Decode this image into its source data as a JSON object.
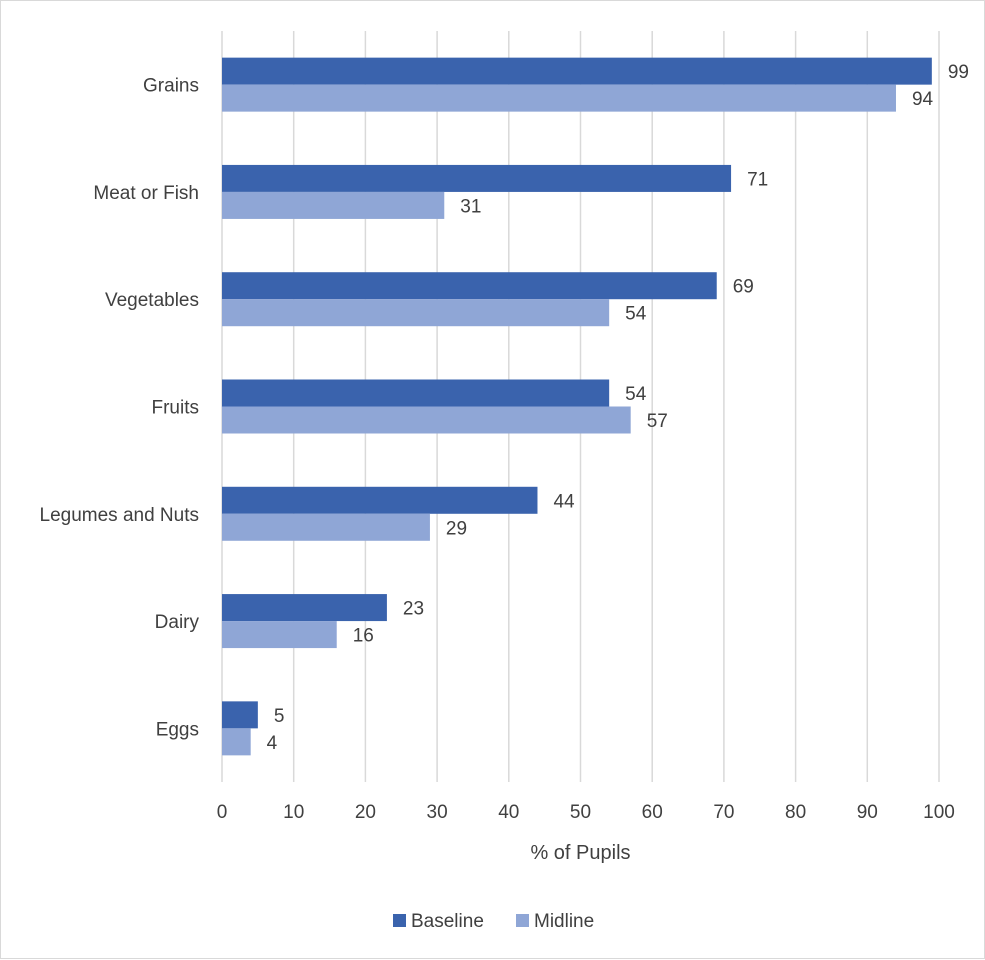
{
  "chart_data": {
    "type": "bar",
    "orientation": "horizontal",
    "categories": [
      "Grains",
      "Meat or Fish",
      "Vegetables",
      "Fruits",
      "Legumes and Nuts",
      "Dairy",
      "Eggs"
    ],
    "series": [
      {
        "name": "Baseline",
        "values": [
          99,
          71,
          69,
          54,
          44,
          23,
          5
        ],
        "color": "#3a63ad"
      },
      {
        "name": "Midline",
        "values": [
          94,
          31,
          54,
          57,
          29,
          16,
          4
        ],
        "color": "#8fa6d6"
      }
    ],
    "xlabel": "% of Pupils",
    "ylabel": "",
    "xlim": [
      0,
      100
    ],
    "xticks": [
      0,
      10,
      20,
      30,
      40,
      50,
      60,
      70,
      80,
      90,
      100
    ],
    "grid": true,
    "legend": "bottom"
  }
}
